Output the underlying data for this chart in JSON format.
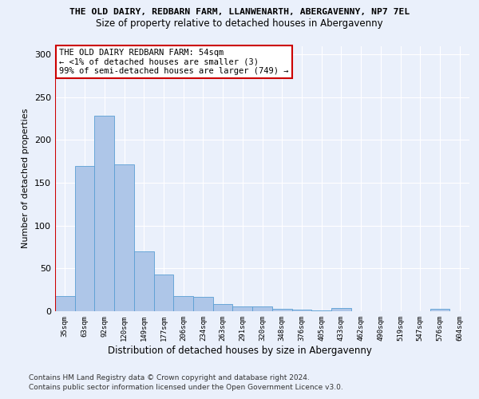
{
  "title1": "THE OLD DAIRY, REDBARN FARM, LLANWENARTH, ABERGAVENNY, NP7 7EL",
  "title2": "Size of property relative to detached houses in Abergavenny",
  "xlabel": "Distribution of detached houses by size in Abergavenny",
  "ylabel": "Number of detached properties",
  "categories": [
    "35sqm",
    "63sqm",
    "92sqm",
    "120sqm",
    "149sqm",
    "177sqm",
    "206sqm",
    "234sqm",
    "263sqm",
    "291sqm",
    "320sqm",
    "348sqm",
    "376sqm",
    "405sqm",
    "433sqm",
    "462sqm",
    "490sqm",
    "519sqm",
    "547sqm",
    "576sqm",
    "604sqm"
  ],
  "values": [
    18,
    170,
    228,
    172,
    70,
    43,
    18,
    17,
    8,
    6,
    6,
    3,
    2,
    1,
    4,
    0,
    0,
    0,
    0,
    3,
    0
  ],
  "bar_color": "#aec6e8",
  "bar_edge_color": "#5a9fd4",
  "highlight_line_color": "#cc0000",
  "annotation_text": "THE OLD DAIRY REDBARN FARM: 54sqm\n← <1% of detached houses are smaller (3)\n99% of semi-detached houses are larger (749) →",
  "annotation_box_edge": "#cc0000",
  "ylim": [
    0,
    310
  ],
  "yticks": [
    0,
    50,
    100,
    150,
    200,
    250,
    300
  ],
  "footer1": "Contains HM Land Registry data © Crown copyright and database right 2024.",
  "footer2": "Contains public sector information licensed under the Open Government Licence v3.0.",
  "bg_color": "#eaf0fb",
  "plot_bg_color": "#eaf0fb"
}
